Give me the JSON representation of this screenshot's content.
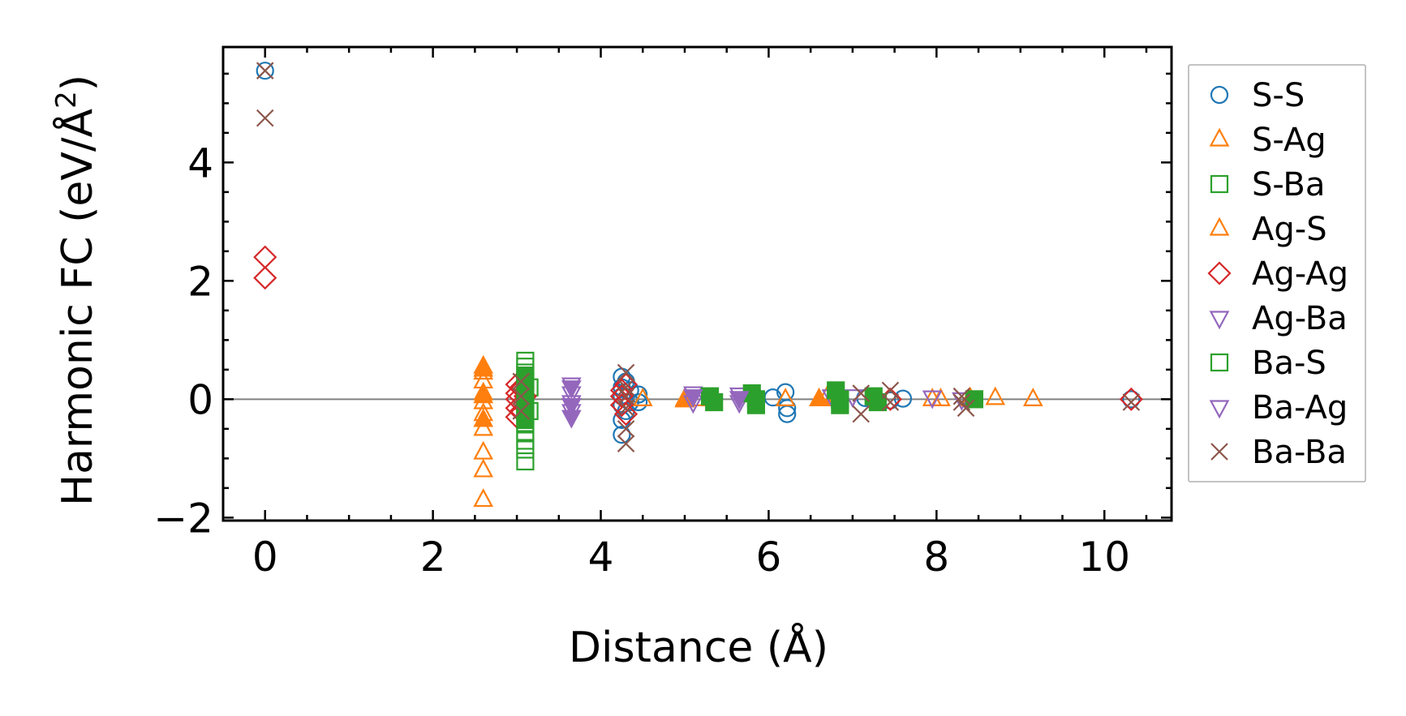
{
  "chart_data": {
    "type": "scatter",
    "xlabel": "Distance (Å)",
    "ylabel": "Harmonic FC (eV/Å",
    "ylabel_sup": "2",
    "ylabel_end": ")",
    "xlim": [
      -0.5,
      10.8
    ],
    "ylim": [
      -2.05,
      5.95
    ],
    "x_ticks": [
      0,
      2,
      4,
      6,
      8,
      10
    ],
    "x_tick_labels": [
      "0",
      "2",
      "4",
      "6",
      "8",
      "10"
    ],
    "y_ticks": [
      -2,
      0,
      2,
      4
    ],
    "y_tick_labels": [
      "−2",
      "0",
      "2",
      "4"
    ],
    "zero_line": true,
    "grid": false,
    "legend_position": "right, outside plot",
    "series": [
      {
        "name": "S-S",
        "marker": "circle",
        "color": "#1f77b4",
        "filled": false,
        "points": [
          [
            0,
            5.55
          ],
          [
            4.25,
            0.38
          ],
          [
            4.25,
            0.2
          ],
          [
            4.25,
            0.05
          ],
          [
            4.25,
            -0.1
          ],
          [
            4.25,
            -0.35
          ],
          [
            4.25,
            -0.6
          ],
          [
            4.3,
            0.3
          ],
          [
            4.3,
            -0.2
          ],
          [
            4.35,
            0.15
          ],
          [
            4.35,
            -0.05
          ],
          [
            4.45,
            0.08
          ],
          [
            4.45,
            -0.05
          ],
          [
            6.05,
            0.03
          ],
          [
            6.2,
            0.12
          ],
          [
            6.22,
            -0.15
          ],
          [
            6.22,
            -0.25
          ],
          [
            7.15,
            0.02
          ],
          [
            7.45,
            -0.02
          ],
          [
            7.6,
            0.01
          ],
          [
            10.32,
            0.0
          ]
        ]
      },
      {
        "name": "S-Ag",
        "marker": "triangle-up",
        "color": "#ff7f0e",
        "filled": false,
        "points": [
          [
            2.6,
            0.55
          ],
          [
            2.6,
            0.45
          ],
          [
            2.6,
            0.3
          ],
          [
            2.6,
            0.1
          ],
          [
            2.6,
            -0.05
          ],
          [
            2.6,
            -0.25
          ],
          [
            2.6,
            -0.5
          ],
          [
            2.6,
            -0.9
          ],
          [
            2.6,
            -1.2
          ],
          [
            2.6,
            -1.7
          ],
          [
            4.5,
            0.0
          ],
          [
            5.0,
            -0.02
          ],
          [
            5.2,
            0.0
          ],
          [
            6.2,
            0.0
          ],
          [
            6.6,
            0.0
          ],
          [
            6.7,
            0.05
          ],
          [
            7.3,
            0.0
          ],
          [
            7.95,
            0.0
          ],
          [
            8.05,
            0.0
          ],
          [
            8.4,
            0.0
          ],
          [
            8.7,
            0.02
          ],
          [
            9.15,
            0.0
          ]
        ]
      },
      {
        "name": "S-Ba",
        "marker": "square",
        "color": "#2ca02c",
        "filled": false,
        "points": [
          [
            3.1,
            0.65
          ],
          [
            3.1,
            0.55
          ],
          [
            3.1,
            0.45
          ],
          [
            3.1,
            0.35
          ],
          [
            3.1,
            0.25
          ],
          [
            3.1,
            0.15
          ],
          [
            3.1,
            0.05
          ],
          [
            3.1,
            -0.05
          ],
          [
            3.1,
            -0.15
          ],
          [
            3.1,
            -0.25
          ],
          [
            3.1,
            -0.4
          ],
          [
            3.1,
            -0.55
          ],
          [
            3.1,
            -0.7
          ],
          [
            3.1,
            -0.85
          ],
          [
            3.1,
            -1.05
          ],
          [
            3.15,
            0.2
          ],
          [
            3.15,
            -0.2
          ]
        ]
      },
      {
        "name": "Ag-S",
        "marker": "triangle-up",
        "color": "#ff7f0e",
        "filled": true,
        "points": [
          [
            2.6,
            0.5
          ],
          [
            2.6,
            0.05
          ],
          [
            2.6,
            -0.35
          ],
          [
            5.0,
            0.0
          ],
          [
            5.3,
            0.0
          ],
          [
            6.6,
            0.0
          ],
          [
            6.75,
            0.0
          ],
          [
            8.4,
            0.02
          ]
        ]
      },
      {
        "name": "Ag-Ag",
        "marker": "diamond",
        "color": "#d62728",
        "filled": false,
        "points": [
          [
            0,
            2.4
          ],
          [
            0,
            2.05
          ],
          [
            3.0,
            0.25
          ],
          [
            3.0,
            0.1
          ],
          [
            3.0,
            0.0
          ],
          [
            3.0,
            -0.15
          ],
          [
            3.0,
            -0.3
          ],
          [
            3.05,
            0.2
          ],
          [
            3.05,
            -0.2
          ],
          [
            3.1,
            0.05
          ],
          [
            4.25,
            0.15
          ],
          [
            4.25,
            0.05
          ],
          [
            4.25,
            -0.1
          ],
          [
            4.3,
            0.25
          ],
          [
            4.3,
            -0.25
          ],
          [
            7.45,
            0.0
          ],
          [
            10.32,
            0.0
          ]
        ]
      },
      {
        "name": "Ag-Ba",
        "marker": "triangle-down",
        "color": "#9467bd",
        "filled": false,
        "points": [
          [
            3.65,
            0.25
          ],
          [
            3.65,
            0.1
          ],
          [
            3.65,
            -0.05
          ],
          [
            3.65,
            -0.2
          ],
          [
            5.1,
            0.1
          ],
          [
            5.1,
            -0.05
          ],
          [
            5.65,
            0.08
          ],
          [
            5.65,
            -0.05
          ],
          [
            6.75,
            0.05
          ],
          [
            7.0,
            0.05
          ],
          [
            7.95,
            0.03
          ],
          [
            8.3,
            0.0
          ]
        ]
      },
      {
        "name": "Ba-S",
        "marker": "square",
        "color": "#2ca02c",
        "filled": true,
        "points": [
          [
            3.1,
            0.4
          ],
          [
            3.1,
            0.1
          ],
          [
            3.1,
            -0.2
          ],
          [
            3.1,
            -0.35
          ],
          [
            5.3,
            0.05
          ],
          [
            5.35,
            -0.05
          ],
          [
            5.8,
            0.1
          ],
          [
            5.85,
            0.0
          ],
          [
            5.85,
            -0.1
          ],
          [
            6.8,
            0.15
          ],
          [
            6.85,
            0.0
          ],
          [
            6.85,
            -0.1
          ],
          [
            7.25,
            0.05
          ],
          [
            7.3,
            -0.05
          ],
          [
            8.45,
            0.0
          ]
        ]
      },
      {
        "name": "Ba-Ag",
        "marker": "triangle-down",
        "color": "#9467bd",
        "filled": true,
        "points": [
          [
            3.65,
            0.2
          ],
          [
            3.65,
            -0.1
          ],
          [
            3.65,
            -0.3
          ],
          [
            5.1,
            0.05
          ],
          [
            5.65,
            0.02
          ]
        ]
      },
      {
        "name": "Ba-Ba",
        "marker": "x",
        "color": "#8c564b",
        "filled": false,
        "points": [
          [
            0,
            5.55
          ],
          [
            0,
            4.75
          ],
          [
            3.05,
            0.3
          ],
          [
            3.05,
            0.05
          ],
          [
            3.05,
            -0.2
          ],
          [
            4.3,
            0.45
          ],
          [
            4.3,
            0.2
          ],
          [
            4.3,
            0.05
          ],
          [
            4.3,
            -0.15
          ],
          [
            4.3,
            -0.5
          ],
          [
            4.3,
            -0.75
          ],
          [
            7.1,
            0.1
          ],
          [
            7.1,
            -0.25
          ],
          [
            7.45,
            0.15
          ],
          [
            7.45,
            -0.05
          ],
          [
            8.3,
            0.05
          ],
          [
            8.3,
            -0.05
          ],
          [
            8.35,
            -0.15
          ],
          [
            10.32,
            -0.05
          ]
        ]
      }
    ]
  }
}
